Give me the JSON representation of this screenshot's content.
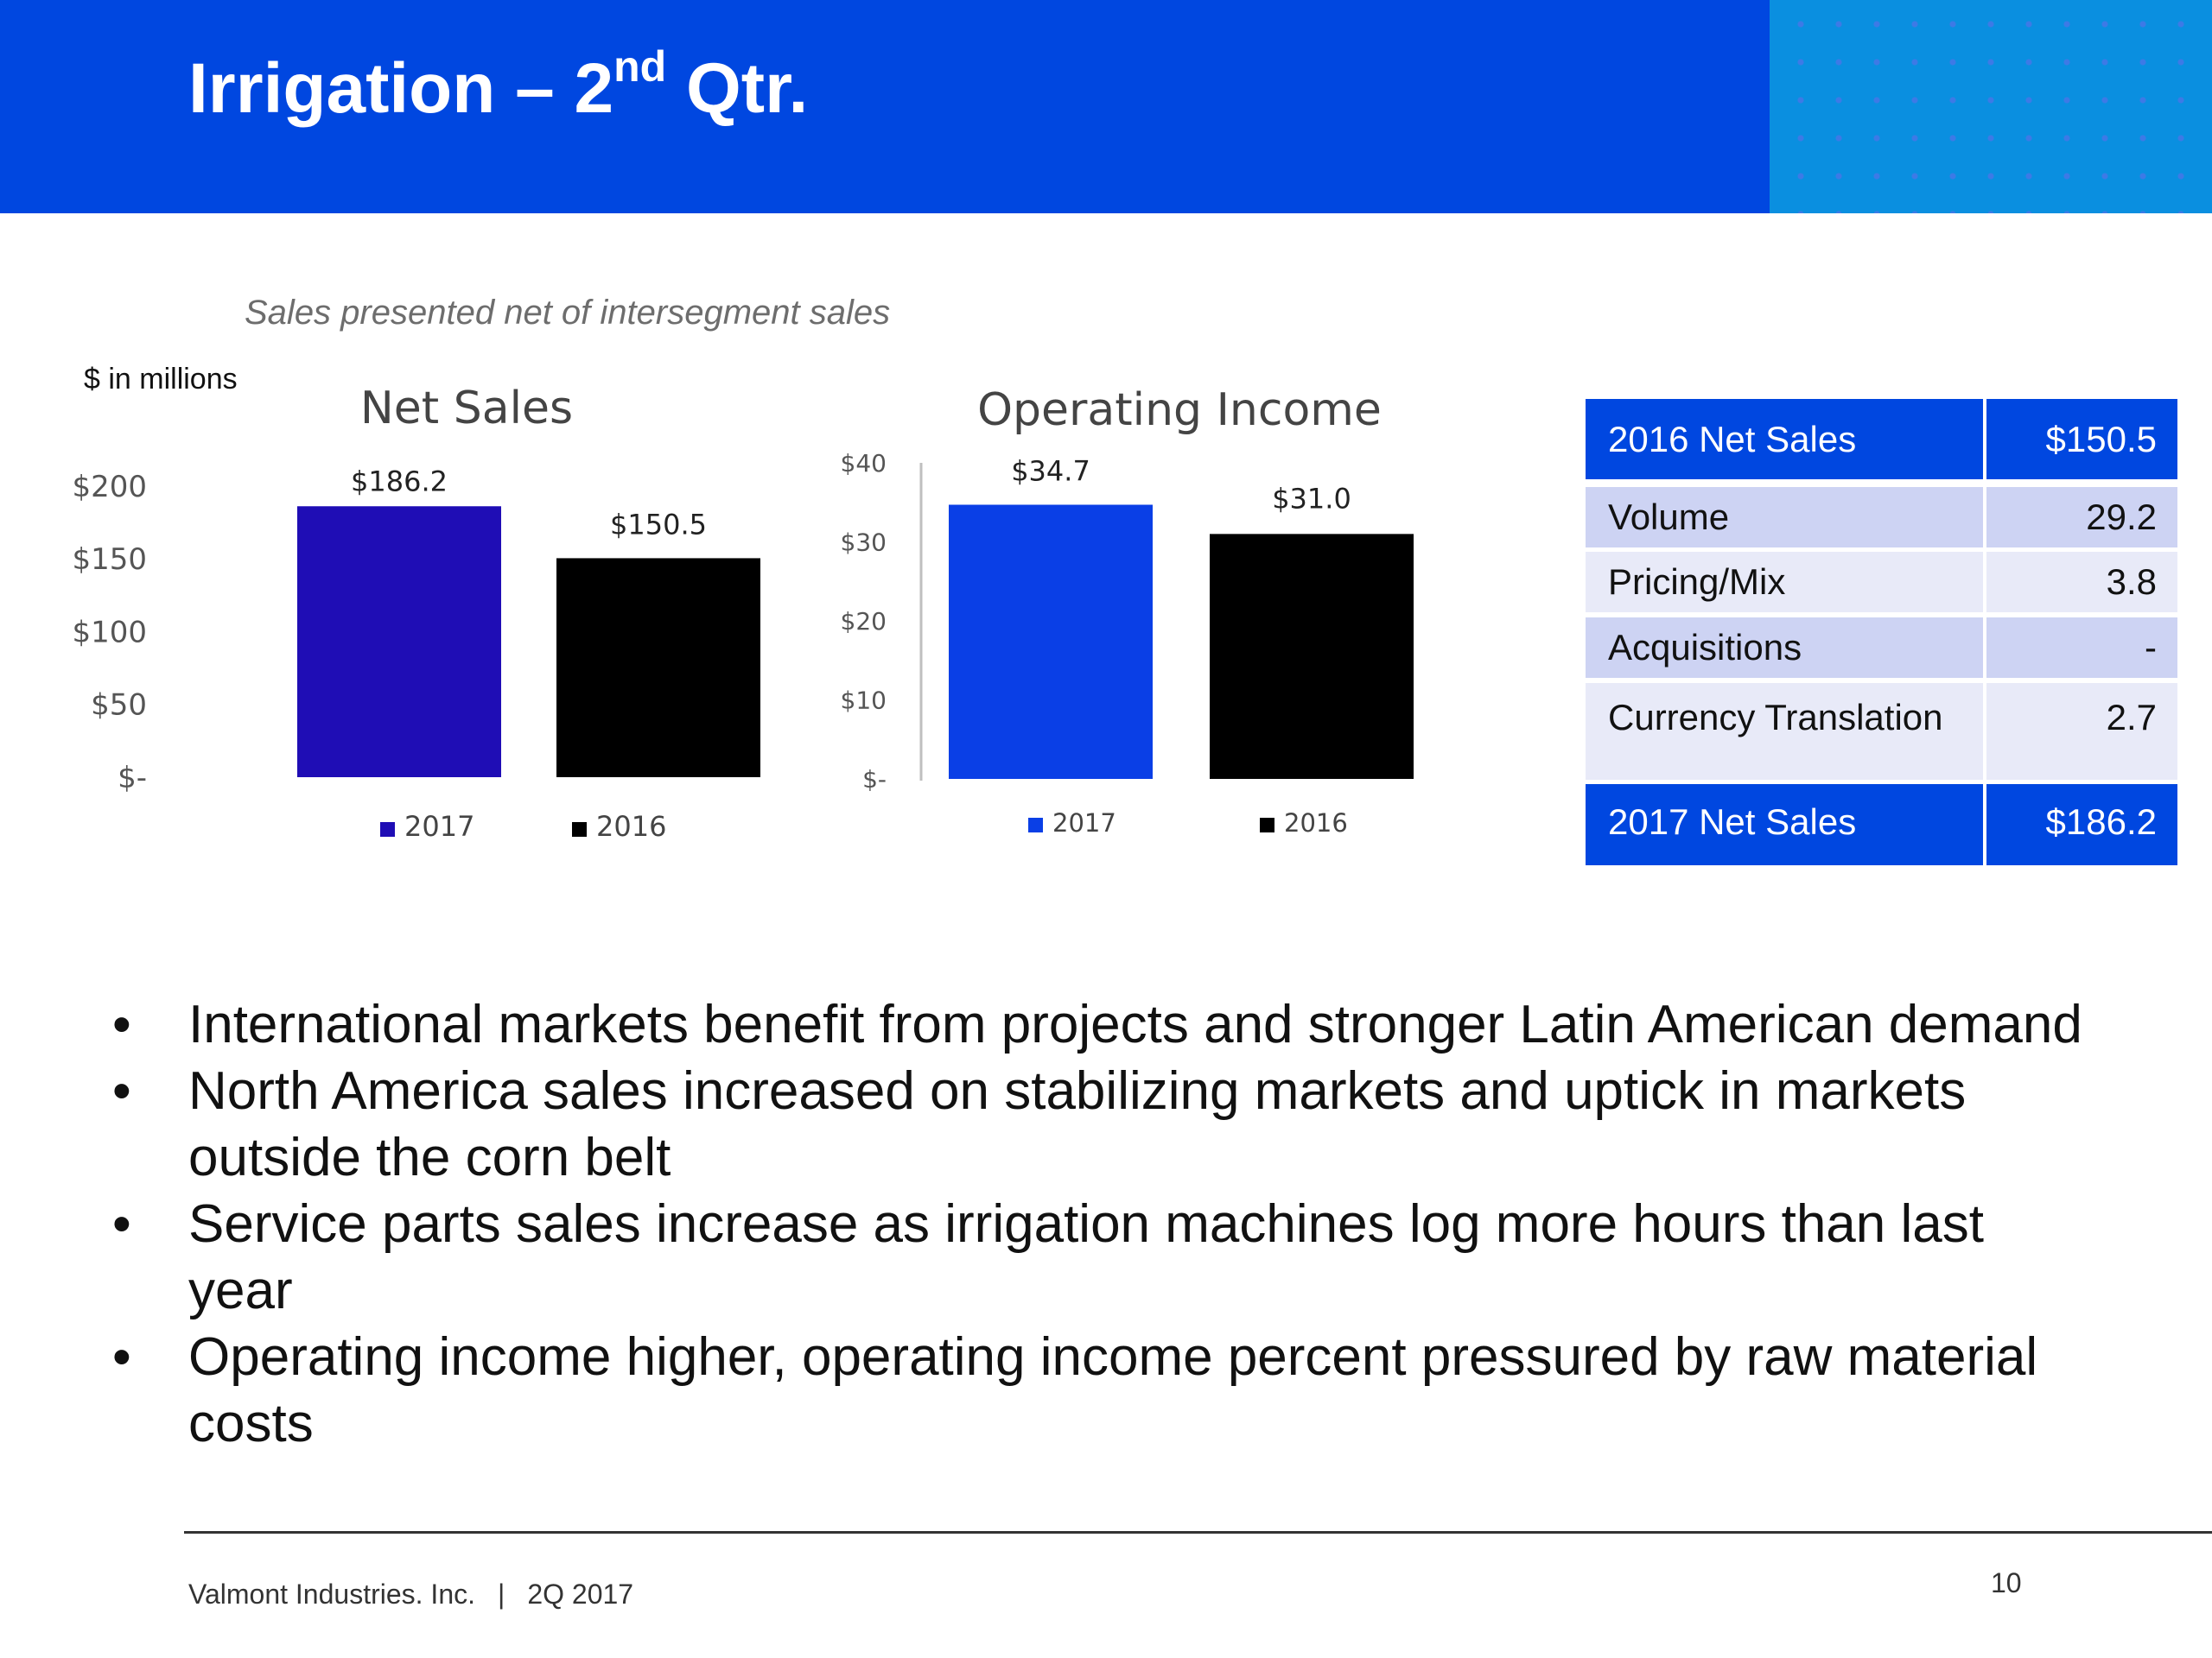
{
  "slide": {
    "title_main": "Irrigation – 2",
    "title_sup": "nd",
    "title_end": " Qtr.",
    "subtitle": "Sales presented net of intersegment sales",
    "units": "$ in millions"
  },
  "chart_data": [
    {
      "type": "bar",
      "title": "Net Sales",
      "categories": [
        "2017",
        "2016"
      ],
      "values": [
        186.2,
        150.5
      ],
      "data_labels": [
        "$186.2",
        "$150.5"
      ],
      "ylim": [
        0,
        200
      ],
      "yticks": [
        {
          "value": 200,
          "label": "$200"
        },
        {
          "value": 150,
          "label": "$150"
        },
        {
          "value": 100,
          "label": "$100"
        },
        {
          "value": 50,
          "label": "$50"
        },
        {
          "value": 0,
          "label": "$-"
        }
      ],
      "colors": [
        "#1f0db5",
        "#000000"
      ],
      "legend": [
        {
          "name": "2017",
          "color": "#1f0db5"
        },
        {
          "name": "2016",
          "color": "#000000"
        }
      ],
      "legend_position": "bottom",
      "grid": false
    },
    {
      "type": "bar",
      "title": "Operating Income",
      "categories": [
        "2017",
        "2016"
      ],
      "values": [
        34.7,
        31.0
      ],
      "data_labels": [
        "$34.7",
        "$31.0"
      ],
      "ylim": [
        0,
        40
      ],
      "yticks": [
        {
          "value": 40,
          "label": "$40"
        },
        {
          "value": 30,
          "label": "$30"
        },
        {
          "value": 20,
          "label": "$20"
        },
        {
          "value": 10,
          "label": "$10"
        },
        {
          "value": 0,
          "label": "$-"
        }
      ],
      "colors": [
        "#0a3fe6",
        "#000000"
      ],
      "legend": [
        {
          "name": "2017",
          "color": "#0a3fe6"
        },
        {
          "name": "2016",
          "color": "#000000"
        }
      ],
      "legend_position": "bottom",
      "grid": false
    },
    {
      "type": "table",
      "rows": [
        {
          "label": "2016 Net Sales",
          "value": "$150.5"
        },
        {
          "label": "Volume",
          "value": "29.2"
        },
        {
          "label": "Pricing/Mix",
          "value": "3.8"
        },
        {
          "label": "Acquisitions",
          "value": "-"
        },
        {
          "label": "Currency Translation",
          "value": "2.7"
        },
        {
          "label": "2017 Net Sales",
          "value": "$186.2"
        }
      ]
    }
  ],
  "colors": {
    "header_blue": "#0047e0",
    "table_total": "#0047e0",
    "table_row_dark": "#cdd3f3",
    "table_row_light": "#e8eaf8"
  },
  "bullets": [
    "International markets benefit from projects and stronger Latin American demand",
    "North America sales increased on stabilizing markets and uptick in markets outside the corn belt",
    "Service parts sales increase as irrigation machines log more hours than last year",
    "Operating income higher, operating income percent pressured by raw material costs"
  ],
  "footer": {
    "company": "Valmont Industries. Inc.",
    "separator": "|",
    "period": "2Q 2017",
    "page_number": "10"
  }
}
